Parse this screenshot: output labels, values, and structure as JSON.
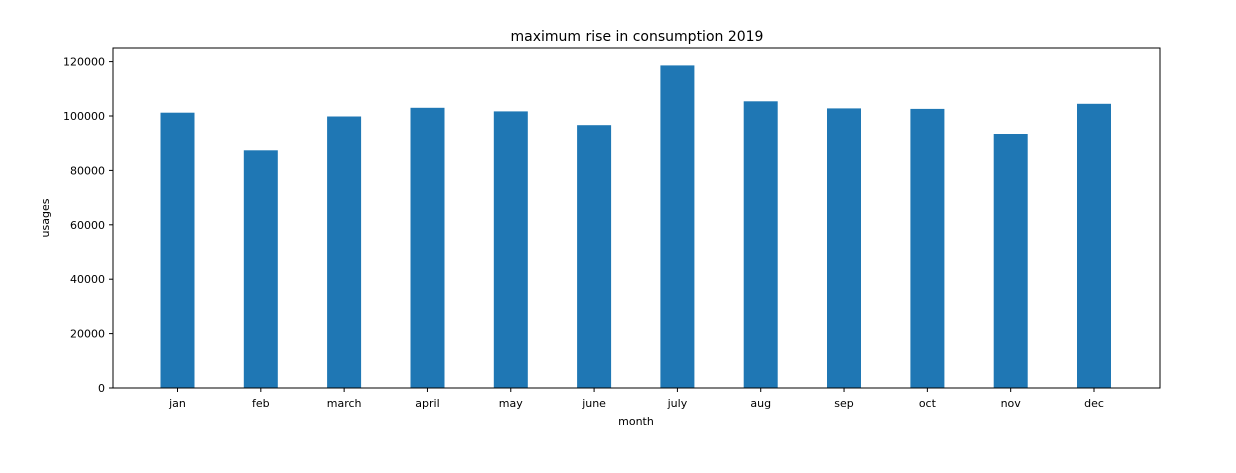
{
  "chart_data": {
    "type": "bar",
    "title": "maximum rise in consumption 2019",
    "xlabel": "month",
    "ylabel": "usages",
    "categories": [
      "jan",
      "feb",
      "march",
      "april",
      "may",
      "june",
      "july",
      "aug",
      "sep",
      "oct",
      "nov",
      "dec"
    ],
    "values": [
      101200,
      87400,
      99800,
      103000,
      101700,
      96600,
      118600,
      105400,
      102800,
      102600,
      93400,
      104500
    ],
    "ylim": [
      0,
      125000
    ],
    "yticks": [
      0,
      20000,
      40000,
      60000,
      80000,
      100000,
      120000
    ],
    "grid": false,
    "bar_color": "#1f77b4"
  }
}
